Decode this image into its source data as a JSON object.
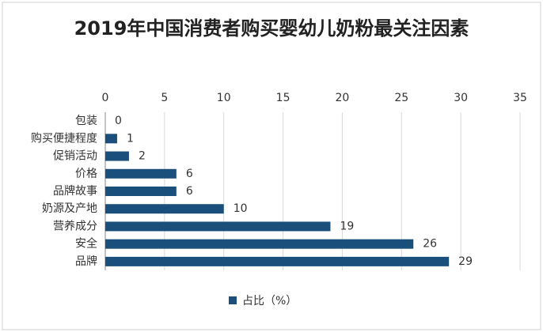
{
  "chart_data": {
    "type": "hbar",
    "title": "2019年中国消费者购买婴幼儿奶粉最关注因素",
    "categories": [
      "包装",
      "购买便捷程度",
      "促销活动",
      "价格",
      "品牌故事",
      "奶源及产地",
      "营养成分",
      "安全",
      "品牌"
    ],
    "series": [
      {
        "name": "占比（%）",
        "color": "#1b4f7b",
        "values": [
          0,
          1,
          2,
          6,
          6,
          10,
          19,
          26,
          29
        ]
      }
    ],
    "xlim": [
      0,
      35
    ],
    "xticks": [
      0,
      5,
      10,
      15,
      20,
      25,
      30,
      35
    ],
    "grid": true,
    "legend": "bottom"
  }
}
